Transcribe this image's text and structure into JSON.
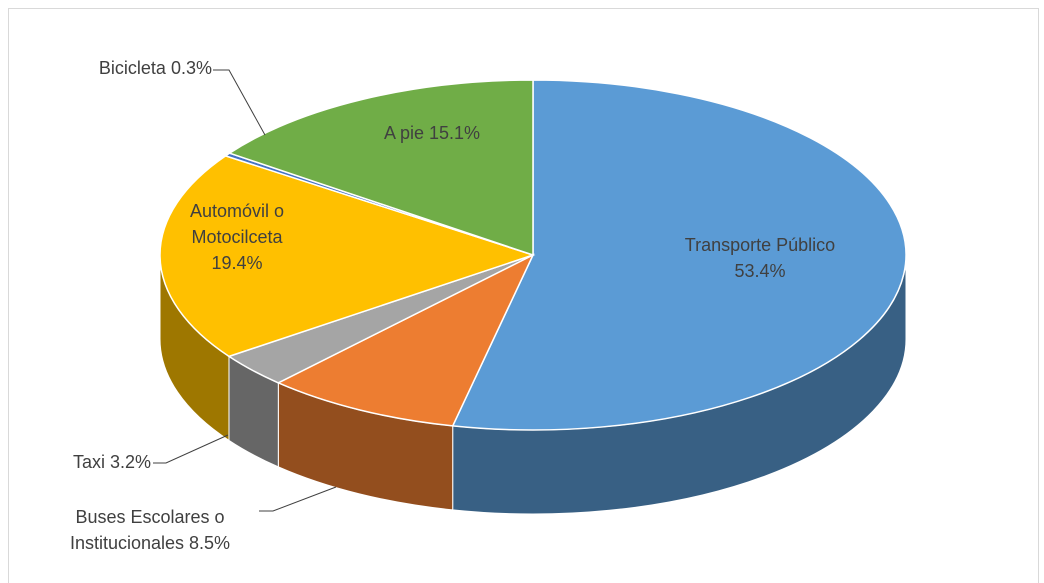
{
  "chart_data": {
    "type": "pie3d",
    "categories": [
      "Transporte Público",
      "Buses Escolares o Institucionales",
      "Taxi",
      "Automóvil o Motocilceta",
      "Bicicleta",
      "A pie"
    ],
    "values": [
      53.4,
      8.5,
      3.2,
      19.4,
      0.3,
      15.1
    ],
    "value_labels": [
      "53.4%",
      "8.5%",
      "3.2%",
      "19.4%",
      "0.3%",
      "15.1%"
    ],
    "colors": [
      "#5b9bd5",
      "#ed7d31",
      "#a5a5a5",
      "#ffc000",
      "#4472c4",
      "#70ad47"
    ]
  }
}
